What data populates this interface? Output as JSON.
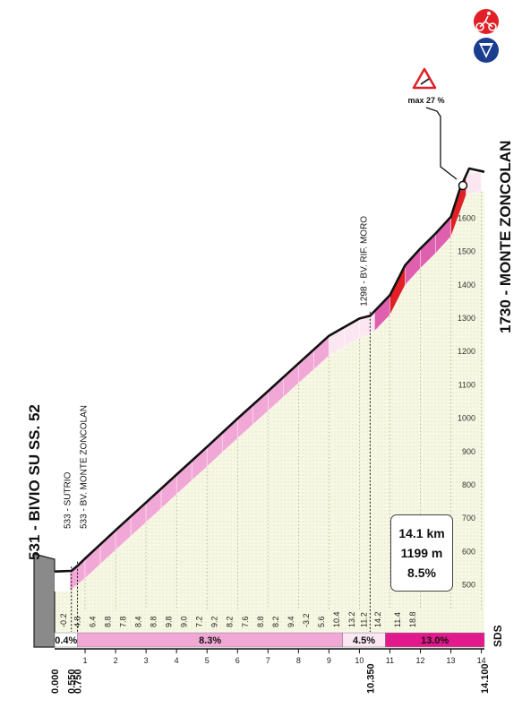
{
  "chart_data": {
    "type": "area",
    "title": "",
    "start_label": "531 - BIVIO SU SS. 52",
    "finish_label": "1730 - MONTE ZONCOLAN",
    "intermediate_labels": [
      {
        "text": "533 - SUTRIO",
        "km": 0.55
      },
      {
        "text": "533 - BV. MONTE ZONCOLAN",
        "km": 0.75
      },
      {
        "text": "1298 - BV. RIF. MORO",
        "km": 10.35
      }
    ],
    "km_marks_bottom": [
      "0.000",
      "0.550",
      "0.750",
      "10.350",
      "14.100"
    ],
    "km_mark_values": [
      0,
      0.55,
      0.75,
      10.35,
      14.1
    ],
    "x_ticks": [
      1,
      2,
      3,
      4,
      5,
      6,
      7,
      8,
      9,
      10,
      11,
      12,
      13,
      14
    ],
    "x_range": [
      0,
      14.1
    ],
    "y_ticks": [
      500,
      600,
      700,
      800,
      900,
      1000,
      1100,
      1200,
      1300,
      1400,
      1500,
      1600
    ],
    "y_range": [
      480,
      1760
    ],
    "sds_label": "SDS",
    "profile": [
      {
        "km": 0,
        "alt": 531
      },
      {
        "km": 0.2,
        "alt": 532
      },
      {
        "km": 0.55,
        "alt": 533
      },
      {
        "km": 0.75,
        "alt": 548
      },
      {
        "km": 1,
        "alt": 570
      },
      {
        "km": 2,
        "alt": 655
      },
      {
        "km": 3,
        "alt": 738
      },
      {
        "km": 4,
        "alt": 822
      },
      {
        "km": 5,
        "alt": 905
      },
      {
        "km": 6,
        "alt": 990
      },
      {
        "km": 7,
        "alt": 1072
      },
      {
        "km": 8,
        "alt": 1155
      },
      {
        "km": 9,
        "alt": 1238
      },
      {
        "km": 10,
        "alt": 1290
      },
      {
        "km": 10.35,
        "alt": 1298
      },
      {
        "km": 11,
        "alt": 1360
      },
      {
        "km": 11.5,
        "alt": 1450
      },
      {
        "km": 12,
        "alt": 1500
      },
      {
        "km": 12.5,
        "alt": 1545
      },
      {
        "km": 13,
        "alt": 1595
      },
      {
        "km": 13.3,
        "alt": 1680
      },
      {
        "km": 13.6,
        "alt": 1740
      },
      {
        "km": 14.1,
        "alt": 1730
      }
    ],
    "km_gradients": [
      "-0.2",
      "4.8",
      "6.4",
      "8.8",
      "7.8",
      "8.4",
      "8.8",
      "9.8",
      "9.0",
      "7.2",
      "9.2",
      "8.2",
      "7.6",
      "8.8",
      "8.2",
      "9.4",
      "-3.2",
      "5.6",
      "10.4",
      "13.2",
      "11.2",
      "14.2",
      "11.4",
      "18.8"
    ],
    "km_gradient_positions": [
      0.3,
      0.75,
      1.25,
      1.75,
      2.25,
      2.75,
      3.25,
      3.75,
      4.25,
      4.75,
      5.25,
      5.75,
      6.25,
      6.75,
      7.25,
      7.75,
      8.25,
      8.75,
      9.25,
      9.75,
      10.15,
      10.6,
      11.25,
      11.75
    ],
    "segments": [
      {
        "from_km": 0,
        "to_km": 0.75,
        "label": "0.4%",
        "color": "#ffffff"
      },
      {
        "from_km": 0.75,
        "to_km": 9.45,
        "label": "8.3%",
        "color": "#f2a8d6"
      },
      {
        "from_km": 9.45,
        "to_km": 10.85,
        "label": "4.5%",
        "color": "#fbe6f2"
      },
      {
        "from_km": 10.85,
        "to_km": 14.1,
        "label": "13.0%",
        "color": "#e1198c"
      }
    ],
    "max_label": "max 27 %",
    "max_km": 13.35,
    "summary": {
      "distance": "14.1 km",
      "climb": "1199 m",
      "avg": "8.5%"
    },
    "colors": {
      "fill": "#f7f8e3",
      "grid": "#9b9b7a",
      "magenta": "#e1198c",
      "pink": "#f2a8d6",
      "light": "#fbe6f2",
      "red": "#e01f26",
      "blue": "#1a3d8f"
    }
  }
}
